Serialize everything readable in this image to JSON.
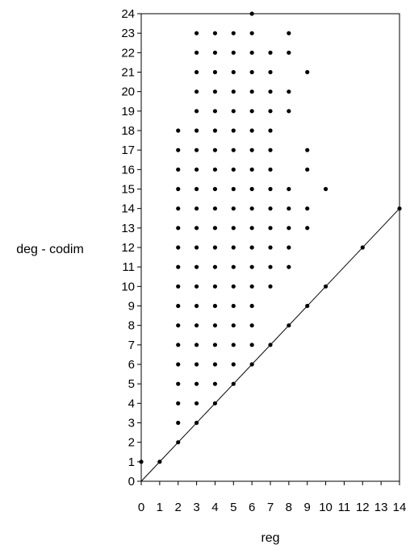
{
  "chart_data": {
    "type": "scatter",
    "xlabel": "reg",
    "ylabel": "deg - codim",
    "xlim": [
      0,
      14
    ],
    "ylim": [
      0,
      24
    ],
    "x_ticks": [
      "0",
      "1",
      "2",
      "3",
      "4",
      "5",
      "6",
      "7",
      "8",
      "9",
      "10",
      "11",
      "12",
      "13",
      "14"
    ],
    "y_ticks": [
      "0",
      "1",
      "2",
      "3",
      "4",
      "5",
      "6",
      "7",
      "8",
      "9",
      "10",
      "11",
      "12",
      "13",
      "14",
      "15",
      "16",
      "17",
      "18",
      "19",
      "20",
      "21",
      "22",
      "23",
      "24"
    ],
    "grid": false,
    "reference_line": {
      "x": [
        0,
        14
      ],
      "y": [
        0,
        14
      ]
    },
    "points": [
      [
        0,
        1
      ],
      [
        1,
        1
      ],
      [
        2,
        2
      ],
      [
        2,
        3
      ],
      [
        2,
        4
      ],
      [
        2,
        5
      ],
      [
        2,
        6
      ],
      [
        2,
        7
      ],
      [
        2,
        8
      ],
      [
        2,
        9
      ],
      [
        2,
        10
      ],
      [
        2,
        11
      ],
      [
        2,
        12
      ],
      [
        2,
        13
      ],
      [
        2,
        14
      ],
      [
        2,
        15
      ],
      [
        2,
        16
      ],
      [
        2,
        17
      ],
      [
        2,
        18
      ],
      [
        3,
        3
      ],
      [
        3,
        4
      ],
      [
        3,
        5
      ],
      [
        3,
        6
      ],
      [
        3,
        7
      ],
      [
        3,
        8
      ],
      [
        3,
        9
      ],
      [
        3,
        10
      ],
      [
        3,
        11
      ],
      [
        3,
        12
      ],
      [
        3,
        13
      ],
      [
        3,
        14
      ],
      [
        3,
        15
      ],
      [
        3,
        16
      ],
      [
        3,
        17
      ],
      [
        3,
        18
      ],
      [
        3,
        19
      ],
      [
        3,
        20
      ],
      [
        3,
        21
      ],
      [
        3,
        22
      ],
      [
        3,
        23
      ],
      [
        4,
        4
      ],
      [
        4,
        5
      ],
      [
        4,
        6
      ],
      [
        4,
        7
      ],
      [
        4,
        8
      ],
      [
        4,
        9
      ],
      [
        4,
        10
      ],
      [
        4,
        11
      ],
      [
        4,
        12
      ],
      [
        4,
        13
      ],
      [
        4,
        14
      ],
      [
        4,
        15
      ],
      [
        4,
        16
      ],
      [
        4,
        17
      ],
      [
        4,
        18
      ],
      [
        4,
        19
      ],
      [
        4,
        20
      ],
      [
        4,
        21
      ],
      [
        4,
        22
      ],
      [
        4,
        23
      ],
      [
        5,
        5
      ],
      [
        5,
        6
      ],
      [
        5,
        7
      ],
      [
        5,
        8
      ],
      [
        5,
        9
      ],
      [
        5,
        10
      ],
      [
        5,
        11
      ],
      [
        5,
        12
      ],
      [
        5,
        13
      ],
      [
        5,
        14
      ],
      [
        5,
        15
      ],
      [
        5,
        16
      ],
      [
        5,
        17
      ],
      [
        5,
        18
      ],
      [
        5,
        19
      ],
      [
        5,
        20
      ],
      [
        5,
        21
      ],
      [
        5,
        22
      ],
      [
        5,
        23
      ],
      [
        6,
        6
      ],
      [
        6,
        7
      ],
      [
        6,
        8
      ],
      [
        6,
        9
      ],
      [
        6,
        10
      ],
      [
        6,
        11
      ],
      [
        6,
        12
      ],
      [
        6,
        13
      ],
      [
        6,
        14
      ],
      [
        6,
        15
      ],
      [
        6,
        16
      ],
      [
        6,
        17
      ],
      [
        6,
        18
      ],
      [
        6,
        19
      ],
      [
        6,
        20
      ],
      [
        6,
        21
      ],
      [
        6,
        22
      ],
      [
        6,
        23
      ],
      [
        6,
        24
      ],
      [
        7,
        7
      ],
      [
        7,
        10
      ],
      [
        7,
        11
      ],
      [
        7,
        12
      ],
      [
        7,
        13
      ],
      [
        7,
        14
      ],
      [
        7,
        15
      ],
      [
        7,
        16
      ],
      [
        7,
        17
      ],
      [
        7,
        18
      ],
      [
        7,
        19
      ],
      [
        7,
        20
      ],
      [
        7,
        21
      ],
      [
        7,
        22
      ],
      [
        8,
        8
      ],
      [
        8,
        11
      ],
      [
        8,
        12
      ],
      [
        8,
        13
      ],
      [
        8,
        14
      ],
      [
        8,
        15
      ],
      [
        8,
        19
      ],
      [
        8,
        20
      ],
      [
        8,
        22
      ],
      [
        8,
        23
      ],
      [
        9,
        9
      ],
      [
        9,
        13
      ],
      [
        9,
        14
      ],
      [
        9,
        16
      ],
      [
        9,
        17
      ],
      [
        9,
        21
      ],
      [
        10,
        10
      ],
      [
        10,
        15
      ],
      [
        12,
        12
      ],
      [
        14,
        14
      ]
    ]
  }
}
